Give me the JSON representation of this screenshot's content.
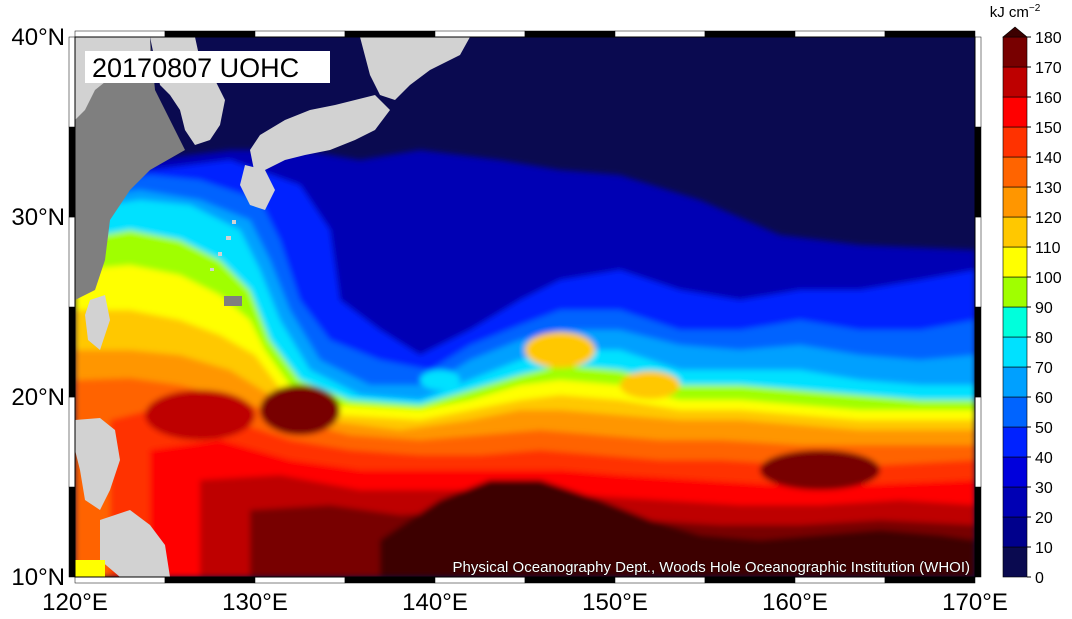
{
  "map": {
    "title": "20170807 UOHC",
    "credit": "Physical Oceanography Dept., Woods Hole Oceanographic Institution (WHOI)",
    "lat_labels": [
      "40°N",
      "30°N",
      "20°N",
      "10°N"
    ],
    "lon_labels": [
      "120°E",
      "130°E",
      "140°E",
      "150°E",
      "160°E",
      "170°E"
    ],
    "lat_range": [
      10,
      40
    ],
    "lon_range": [
      120,
      170
    ],
    "colors": {
      "land": "#d2d2d2",
      "missing": "#7f7f7f",
      "frame_dark": "#000000",
      "frame_light": "#ffffff"
    }
  },
  "colorbar": {
    "unit": "kJ cm",
    "unit_exp": "−2",
    "tick_labels": [
      "0",
      "10",
      "20",
      "30",
      "40",
      "50",
      "60",
      "70",
      "80",
      "90",
      "100",
      "110",
      "120",
      "130",
      "140",
      "150",
      "160",
      "170",
      "180"
    ],
    "colors": [
      "#0a0a50",
      "#00008c",
      "#0000b4",
      "#0000dc",
      "#0022ff",
      "#0064ff",
      "#00a0ff",
      "#00e1ff",
      "#00ffdc",
      "#a0ff00",
      "#ffff00",
      "#ffc800",
      "#ff9600",
      "#ff6400",
      "#ff3200",
      "#ff0000",
      "#be0000",
      "#780000",
      "#3c0000"
    ]
  }
}
